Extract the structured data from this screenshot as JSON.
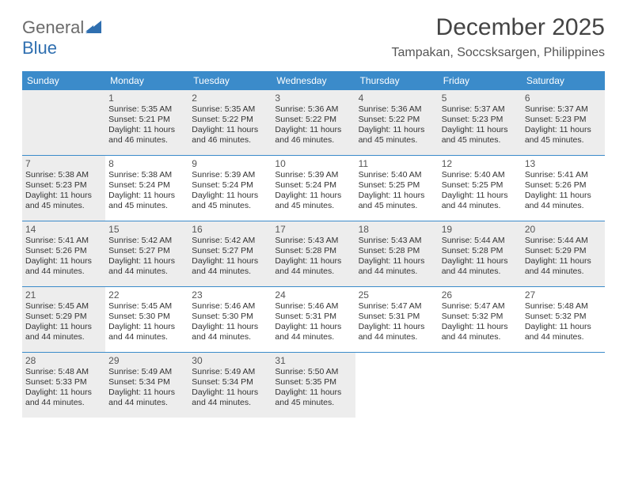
{
  "logo": {
    "general": "General",
    "blue": "Blue"
  },
  "title": "December 2025",
  "location": "Tampakan, Soccsksargen, Philippines",
  "colors": {
    "header_bg": "#3b8bca",
    "header_text": "#ffffff",
    "shaded_cell": "#ededed",
    "logo_gray": "#6b6b6b",
    "logo_blue": "#2f6fb0"
  },
  "day_headers": [
    "Sunday",
    "Monday",
    "Tuesday",
    "Wednesday",
    "Thursday",
    "Friday",
    "Saturday"
  ],
  "weeks": [
    [
      {
        "blank": true,
        "shaded": true
      },
      {
        "day": "1",
        "shaded": true,
        "sunrise": "Sunrise: 5:35 AM",
        "sunset": "Sunset: 5:21 PM",
        "daylight1": "Daylight: 11 hours",
        "daylight2": "and 46 minutes."
      },
      {
        "day": "2",
        "shaded": true,
        "sunrise": "Sunrise: 5:35 AM",
        "sunset": "Sunset: 5:22 PM",
        "daylight1": "Daylight: 11 hours",
        "daylight2": "and 46 minutes."
      },
      {
        "day": "3",
        "shaded": true,
        "sunrise": "Sunrise: 5:36 AM",
        "sunset": "Sunset: 5:22 PM",
        "daylight1": "Daylight: 11 hours",
        "daylight2": "and 46 minutes."
      },
      {
        "day": "4",
        "shaded": true,
        "sunrise": "Sunrise: 5:36 AM",
        "sunset": "Sunset: 5:22 PM",
        "daylight1": "Daylight: 11 hours",
        "daylight2": "and 45 minutes."
      },
      {
        "day": "5",
        "shaded": true,
        "sunrise": "Sunrise: 5:37 AM",
        "sunset": "Sunset: 5:23 PM",
        "daylight1": "Daylight: 11 hours",
        "daylight2": "and 45 minutes."
      },
      {
        "day": "6",
        "shaded": true,
        "sunrise": "Sunrise: 5:37 AM",
        "sunset": "Sunset: 5:23 PM",
        "daylight1": "Daylight: 11 hours",
        "daylight2": "and 45 minutes."
      }
    ],
    [
      {
        "day": "7",
        "shaded": true,
        "sunrise": "Sunrise: 5:38 AM",
        "sunset": "Sunset: 5:23 PM",
        "daylight1": "Daylight: 11 hours",
        "daylight2": "and 45 minutes."
      },
      {
        "day": "8",
        "sunrise": "Sunrise: 5:38 AM",
        "sunset": "Sunset: 5:24 PM",
        "daylight1": "Daylight: 11 hours",
        "daylight2": "and 45 minutes."
      },
      {
        "day": "9",
        "sunrise": "Sunrise: 5:39 AM",
        "sunset": "Sunset: 5:24 PM",
        "daylight1": "Daylight: 11 hours",
        "daylight2": "and 45 minutes."
      },
      {
        "day": "10",
        "sunrise": "Sunrise: 5:39 AM",
        "sunset": "Sunset: 5:24 PM",
        "daylight1": "Daylight: 11 hours",
        "daylight2": "and 45 minutes."
      },
      {
        "day": "11",
        "sunrise": "Sunrise: 5:40 AM",
        "sunset": "Sunset: 5:25 PM",
        "daylight1": "Daylight: 11 hours",
        "daylight2": "and 45 minutes."
      },
      {
        "day": "12",
        "sunrise": "Sunrise: 5:40 AM",
        "sunset": "Sunset: 5:25 PM",
        "daylight1": "Daylight: 11 hours",
        "daylight2": "and 44 minutes."
      },
      {
        "day": "13",
        "sunrise": "Sunrise: 5:41 AM",
        "sunset": "Sunset: 5:26 PM",
        "daylight1": "Daylight: 11 hours",
        "daylight2": "and 44 minutes."
      }
    ],
    [
      {
        "day": "14",
        "shaded": true,
        "sunrise": "Sunrise: 5:41 AM",
        "sunset": "Sunset: 5:26 PM",
        "daylight1": "Daylight: 11 hours",
        "daylight2": "and 44 minutes."
      },
      {
        "day": "15",
        "shaded": true,
        "sunrise": "Sunrise: 5:42 AM",
        "sunset": "Sunset: 5:27 PM",
        "daylight1": "Daylight: 11 hours",
        "daylight2": "and 44 minutes."
      },
      {
        "day": "16",
        "shaded": true,
        "sunrise": "Sunrise: 5:42 AM",
        "sunset": "Sunset: 5:27 PM",
        "daylight1": "Daylight: 11 hours",
        "daylight2": "and 44 minutes."
      },
      {
        "day": "17",
        "shaded": true,
        "sunrise": "Sunrise: 5:43 AM",
        "sunset": "Sunset: 5:28 PM",
        "daylight1": "Daylight: 11 hours",
        "daylight2": "and 44 minutes."
      },
      {
        "day": "18",
        "shaded": true,
        "sunrise": "Sunrise: 5:43 AM",
        "sunset": "Sunset: 5:28 PM",
        "daylight1": "Daylight: 11 hours",
        "daylight2": "and 44 minutes."
      },
      {
        "day": "19",
        "shaded": true,
        "sunrise": "Sunrise: 5:44 AM",
        "sunset": "Sunset: 5:28 PM",
        "daylight1": "Daylight: 11 hours",
        "daylight2": "and 44 minutes."
      },
      {
        "day": "20",
        "shaded": true,
        "sunrise": "Sunrise: 5:44 AM",
        "sunset": "Sunset: 5:29 PM",
        "daylight1": "Daylight: 11 hours",
        "daylight2": "and 44 minutes."
      }
    ],
    [
      {
        "day": "21",
        "shaded": true,
        "sunrise": "Sunrise: 5:45 AM",
        "sunset": "Sunset: 5:29 PM",
        "daylight1": "Daylight: 11 hours",
        "daylight2": "and 44 minutes."
      },
      {
        "day": "22",
        "sunrise": "Sunrise: 5:45 AM",
        "sunset": "Sunset: 5:30 PM",
        "daylight1": "Daylight: 11 hours",
        "daylight2": "and 44 minutes."
      },
      {
        "day": "23",
        "sunrise": "Sunrise: 5:46 AM",
        "sunset": "Sunset: 5:30 PM",
        "daylight1": "Daylight: 11 hours",
        "daylight2": "and 44 minutes."
      },
      {
        "day": "24",
        "sunrise": "Sunrise: 5:46 AM",
        "sunset": "Sunset: 5:31 PM",
        "daylight1": "Daylight: 11 hours",
        "daylight2": "and 44 minutes."
      },
      {
        "day": "25",
        "sunrise": "Sunrise: 5:47 AM",
        "sunset": "Sunset: 5:31 PM",
        "daylight1": "Daylight: 11 hours",
        "daylight2": "and 44 minutes."
      },
      {
        "day": "26",
        "sunrise": "Sunrise: 5:47 AM",
        "sunset": "Sunset: 5:32 PM",
        "daylight1": "Daylight: 11 hours",
        "daylight2": "and 44 minutes."
      },
      {
        "day": "27",
        "sunrise": "Sunrise: 5:48 AM",
        "sunset": "Sunset: 5:32 PM",
        "daylight1": "Daylight: 11 hours",
        "daylight2": "and 44 minutes."
      }
    ],
    [
      {
        "day": "28",
        "shaded": true,
        "sunrise": "Sunrise: 5:48 AM",
        "sunset": "Sunset: 5:33 PM",
        "daylight1": "Daylight: 11 hours",
        "daylight2": "and 44 minutes."
      },
      {
        "day": "29",
        "shaded": true,
        "sunrise": "Sunrise: 5:49 AM",
        "sunset": "Sunset: 5:34 PM",
        "daylight1": "Daylight: 11 hours",
        "daylight2": "and 44 minutes."
      },
      {
        "day": "30",
        "shaded": true,
        "sunrise": "Sunrise: 5:49 AM",
        "sunset": "Sunset: 5:34 PM",
        "daylight1": "Daylight: 11 hours",
        "daylight2": "and 44 minutes."
      },
      {
        "day": "31",
        "shaded": true,
        "sunrise": "Sunrise: 5:50 AM",
        "sunset": "Sunset: 5:35 PM",
        "daylight1": "Daylight: 11 hours",
        "daylight2": "and 45 minutes."
      },
      {
        "blank": true
      },
      {
        "blank": true
      },
      {
        "blank": true
      }
    ]
  ]
}
